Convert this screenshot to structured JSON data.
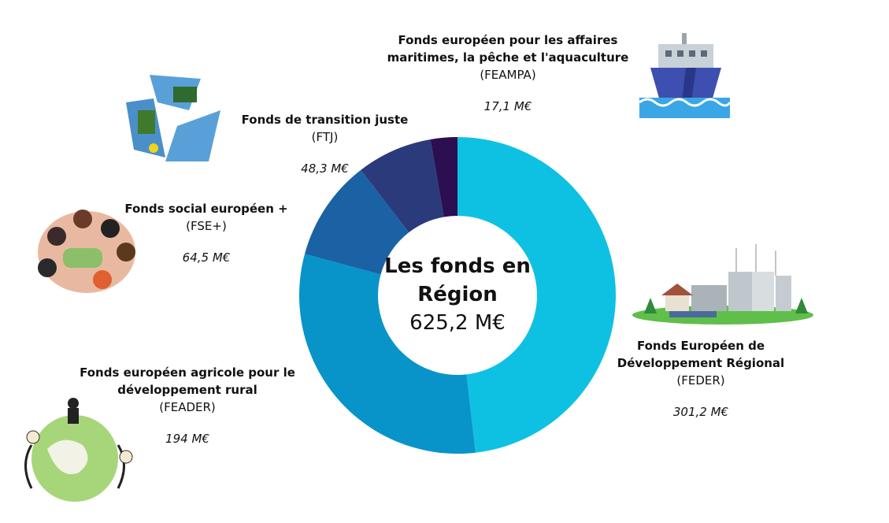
{
  "chart_data": {
    "type": "donut",
    "center_title": "Les fonds en Région",
    "total": 625.2,
    "total_label": "625,2 M€",
    "categories": [
      "Fonds Européen de Développement Régional",
      "Fonds européen agricole pour le développement rural",
      "Fonds social européen +",
      "Fonds de transition juste",
      "Fonds européen pour les affaires maritimes, la pêche et l'aquaculture"
    ],
    "codes": [
      "(FEDER)",
      "(FEADER)",
      "(FSE+)",
      "(FTJ)",
      "(FEAMPA)"
    ],
    "values": [
      301.2,
      194,
      64.5,
      48.3,
      17.1
    ],
    "value_labels": [
      "301,2 M€",
      "194 M€",
      "64,5 M€",
      "48,3 M€",
      "17,1 M€"
    ],
    "colors": [
      "#0ec1e2",
      "#0894c9",
      "#1a62a3",
      "#2b3a7b",
      "#2b0f50"
    ]
  }
}
